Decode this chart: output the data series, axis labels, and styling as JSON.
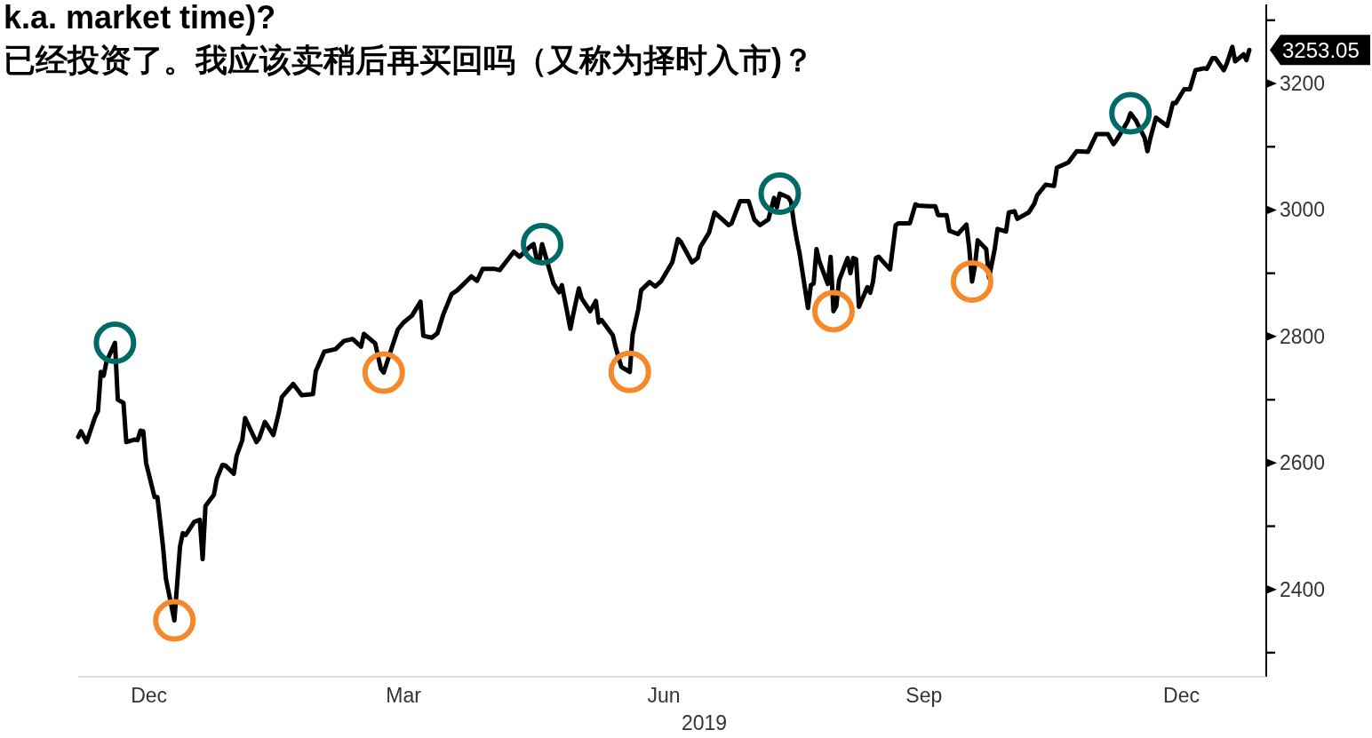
{
  "chart_data": {
    "type": "line",
    "title": "k.a. market time)?",
    "subtitle": "已经投资了。我应该卖稍后再买回吗（又称为择时入市)？",
    "xlabel": "2019",
    "xticks": [
      {
        "value": "2018-12-15",
        "label": "Dec"
      },
      {
        "value": "2019-03-15",
        "label": "Mar"
      },
      {
        "value": "2019-06-15",
        "label": "Jun"
      },
      {
        "value": "2019-09-15",
        "label": "Sep"
      },
      {
        "value": "2019-12-15",
        "label": "Dec"
      }
    ],
    "xlim": [
      "2018-11-20",
      "2020-01-14"
    ],
    "ylim": [
      2262,
      3325
    ],
    "yticks": [
      {
        "value": 2300,
        "label": null
      },
      2400,
      {
        "value": 2500,
        "label": null
      },
      2600,
      {
        "value": 2700,
        "label": null
      },
      2800,
      {
        "value": 2900,
        "label": null
      },
      3000,
      {
        "value": 3100,
        "label": null
      },
      3200,
      {
        "value": 3300,
        "label": null
      }
    ],
    "annotations": [
      {
        "text": "3253.05",
        "x": "2020-01-08",
        "y": 3253.05
      }
    ],
    "series": [
      {
        "color": "#000000",
        "x": [
          "2018-11-20",
          "2018-11-21",
          "2018-11-23",
          "2018-11-26",
          "2018-11-27",
          "2018-11-28",
          "2018-11-29",
          "2018-11-30",
          "2018-12-03",
          "2018-12-04",
          "2018-12-06",
          "2018-12-07",
          "2018-12-10",
          "2018-12-11",
          "2018-12-12",
          "2018-12-13",
          "2018-12-14",
          "2018-12-17",
          "2018-12-18",
          "2018-12-19",
          "2018-12-20",
          "2018-12-21",
          "2018-12-24",
          "2018-12-26",
          "2018-12-27",
          "2018-12-28",
          "2018-12-31",
          "2019-01-02",
          "2019-01-03",
          "2019-01-04",
          "2019-01-07",
          "2019-01-08",
          "2019-01-10",
          "2019-01-11",
          "2019-01-14",
          "2019-01-15",
          "2019-01-17",
          "2019-01-18",
          "2019-01-22",
          "2019-01-23",
          "2019-01-25",
          "2019-01-28",
          "2019-01-30",
          "2019-01-31",
          "2019-02-04",
          "2019-02-07",
          "2019-02-11",
          "2019-02-12",
          "2019-02-15",
          "2019-02-19",
          "2019-02-22",
          "2019-02-25",
          "2019-02-28",
          "2019-03-01",
          "2019-03-05",
          "2019-03-07",
          "2019-03-08",
          "2019-03-11",
          "2019-03-13",
          "2019-03-15",
          "2019-03-18",
          "2019-03-21",
          "2019-03-22",
          "2019-03-25",
          "2019-03-27",
          "2019-03-29",
          "2019-04-01",
          "2019-04-03",
          "2019-04-08",
          "2019-04-10",
          "2019-04-12",
          "2019-04-16",
          "2019-04-18",
          "2019-04-23",
          "2019-04-25",
          "2019-04-29",
          "2019-04-30",
          "2019-05-01",
          "2019-05-02",
          "2019-05-03",
          "2019-05-07",
          "2019-05-09",
          "2019-05-10",
          "2019-05-13",
          "2019-05-14",
          "2019-05-16",
          "2019-05-17",
          "2019-05-20",
          "2019-05-22",
          "2019-05-23",
          "2019-05-24",
          "2019-05-28",
          "2019-05-29",
          "2019-05-31",
          "2019-06-03",
          "2019-06-04",
          "2019-06-06",
          "2019-06-07",
          "2019-06-10",
          "2019-06-12",
          "2019-06-14",
          "2019-06-18",
          "2019-06-20",
          "2019-06-21",
          "2019-06-25",
          "2019-06-27",
          "2019-06-28",
          "2019-07-01",
          "2019-07-03",
          "2019-07-08",
          "2019-07-09",
          "2019-07-12",
          "2019-07-15",
          "2019-07-17",
          "2019-07-19",
          "2019-07-22",
          "2019-07-24",
          "2019-07-25",
          "2019-07-26",
          "2019-07-29",
          "2019-07-30",
          "2019-07-31",
          "2019-08-01",
          "2019-08-02",
          "2019-08-05",
          "2019-08-06",
          "2019-08-07",
          "2019-08-08",
          "2019-08-09",
          "2019-08-12",
          "2019-08-13",
          "2019-08-14",
          "2019-08-15",
          "2019-08-16",
          "2019-08-19",
          "2019-08-20",
          "2019-08-21",
          "2019-08-22",
          "2019-08-23",
          "2019-08-26",
          "2019-08-27",
          "2019-08-28",
          "2019-08-29",
          "2019-08-30",
          "2019-09-03",
          "2019-09-05",
          "2019-09-06",
          "2019-09-10",
          "2019-09-12",
          "2019-09-13",
          "2019-09-17",
          "2019-09-19",
          "2019-09-20",
          "2019-09-23",
          "2019-09-24",
          "2019-09-27",
          "2019-09-30",
          "2019-10-01",
          "2019-10-02",
          "2019-10-03",
          "2019-10-04",
          "2019-10-07",
          "2019-10-08",
          "2019-10-10",
          "2019-10-11",
          "2019-10-14",
          "2019-10-15",
          "2019-10-17",
          "2019-10-18",
          "2019-10-22",
          "2019-10-24",
          "2019-10-25",
          "2019-10-28",
          "2019-10-31",
          "2019-11-01",
          "2019-11-05",
          "2019-11-08",
          "2019-11-12",
          "2019-11-15",
          "2019-11-19",
          "2019-11-21",
          "2019-11-22",
          "2019-11-26",
          "2019-11-27",
          "2019-11-29",
          "2019-12-02",
          "2019-12-03",
          "2019-12-04",
          "2019-12-06",
          "2019-12-10",
          "2019-12-12",
          "2019-12-13",
          "2019-12-16",
          "2019-12-18",
          "2019-12-20",
          "2019-12-23",
          "2019-12-24",
          "2019-12-26",
          "2019-12-27",
          "2019-12-30",
          "2019-12-31",
          "2020-01-02",
          "2020-01-03",
          "2020-01-06",
          "2020-01-07",
          "2020-01-08"
        ],
        "values": [
          2641,
          2650,
          2633,
          2673,
          2682,
          2744,
          2738,
          2760,
          2790,
          2700,
          2695,
          2633,
          2637,
          2636,
          2651,
          2650,
          2600,
          2546,
          2546,
          2507,
          2467,
          2417,
          2351,
          2468,
          2489,
          2486,
          2507,
          2510,
          2448,
          2532,
          2550,
          2575,
          2597,
          2596,
          2583,
          2611,
          2636,
          2671,
          2633,
          2639,
          2665,
          2644,
          2681,
          2704,
          2725,
          2707,
          2709,
          2745,
          2776,
          2780,
          2793,
          2796,
          2784,
          2804,
          2789,
          2749,
          2743,
          2784,
          2811,
          2822,
          2833,
          2855,
          2801,
          2798,
          2805,
          2834,
          2867,
          2873,
          2895,
          2888,
          2907,
          2907,
          2905,
          2934,
          2926,
          2943,
          2946,
          2924,
          2918,
          2946,
          2884,
          2870,
          2881,
          2812,
          2835,
          2876,
          2860,
          2840,
          2856,
          2822,
          2826,
          2802,
          2783,
          2752,
          2744,
          2803,
          2843,
          2873,
          2886,
          2879,
          2887,
          2917,
          2954,
          2950,
          2917,
          2924,
          2942,
          2964,
          2996,
          2976,
          2979,
          3014,
          3014,
          2985,
          2976,
          2985,
          3019,
          3004,
          3026,
          3020,
          3013,
          2980,
          2954,
          2932,
          2845,
          2881,
          2884,
          2938,
          2919,
          2883,
          2926,
          2840,
          2848,
          2889,
          2924,
          2900,
          2924,
          2922,
          2847,
          2878,
          2869,
          2887,
          2924,
          2926,
          2906,
          2976,
          2979,
          2979,
          3009,
          3007,
          3006,
          3006,
          2992,
          2992,
          2967,
          2962,
          2977,
          2940,
          2887,
          2911,
          2952,
          2938,
          2893,
          2938,
          2970,
          2966,
          2996,
          2998,
          2986,
          2996,
          3010,
          3023,
          3040,
          3038,
          3067,
          3075,
          3093,
          3092,
          3120,
          3120,
          3104,
          3110,
          3140,
          3153,
          3141,
          3114,
          3093,
          3113,
          3146,
          3133,
          3169,
          3169,
          3191,
          3191,
          3221,
          3224,
          3223,
          3240,
          3240,
          3221,
          3231,
          3258,
          3235,
          3246,
          3237,
          3253
        ]
      },
      {
        "type": "scatter",
        "color": "#006b66",
        "marker": "circle",
        "x": [
          "2018-12-03",
          "2019-05-03",
          "2019-07-26",
          "2019-11-27"
        ],
        "values": [
          2790,
          2946,
          3026,
          3153
        ]
      },
      {
        "type": "scatter",
        "color": "#f5892a",
        "marker": "circle",
        "x": [
          "2018-12-24",
          "2019-03-08",
          "2019-06-03",
          "2019-08-14",
          "2019-10-02"
        ],
        "values": [
          2351,
          2743,
          2744,
          2840,
          2887
        ]
      }
    ]
  }
}
